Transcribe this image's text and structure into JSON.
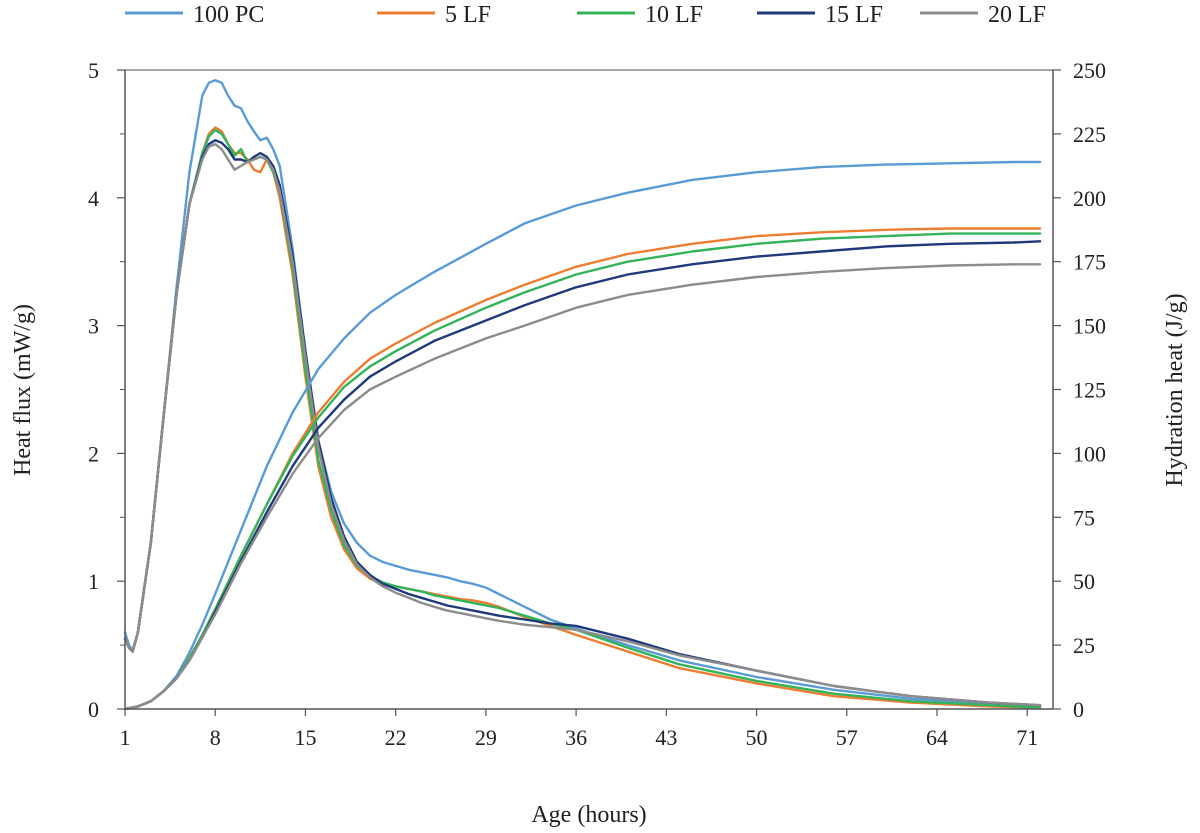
{
  "chart_data": {
    "type": "line",
    "xlabel": "Age (hours)",
    "ylabel_left": "Heat flux  (mW/g)",
    "ylabel_right": "Hydration heat (J/g)",
    "xlim": [
      1,
      73
    ],
    "ylim_left": [
      0,
      5
    ],
    "ylim_right": [
      0,
      250
    ],
    "x_ticks": [
      1,
      8,
      15,
      22,
      29,
      36,
      43,
      50,
      57,
      64,
      71
    ],
    "y_left_ticks": [
      0,
      1,
      2,
      3,
      4,
      5
    ],
    "y_right_ticks": [
      0,
      25,
      50,
      75,
      100,
      125,
      150,
      175,
      200,
      225,
      250
    ],
    "grid": false,
    "legend_position": "top",
    "legend": [
      {
        "name": "100 PC",
        "color": "#5b9bd5"
      },
      {
        "name": "5 LF",
        "color": "#ed7d31"
      },
      {
        "name": "10 LF",
        "color": "#33b35a"
      },
      {
        "name": "15 LF",
        "color": "#1f3a7a"
      },
      {
        "name": "20 LF",
        "color": "#8c8c8c"
      }
    ],
    "series": [
      {
        "name": "100 PC",
        "quantity": "heat_flux",
        "axis": "left",
        "color": "#5b9bd5",
        "x": [
          1,
          1.3,
          1.6,
          2,
          3,
          4,
          5,
          6,
          7,
          7.5,
          8,
          8.5,
          9,
          9.5,
          10,
          10.5,
          11,
          11.5,
          12,
          12.5,
          13,
          14,
          15,
          16,
          17,
          18,
          19,
          20,
          21,
          22,
          23,
          24,
          25,
          26,
          27,
          28,
          29,
          30,
          32,
          34,
          36,
          40,
          44,
          50,
          56,
          62,
          68,
          72
        ],
        "y": [
          0.6,
          0.5,
          0.46,
          0.6,
          1.3,
          2.3,
          3.3,
          4.2,
          4.8,
          4.9,
          4.92,
          4.9,
          4.8,
          4.72,
          4.7,
          4.6,
          4.52,
          4.45,
          4.47,
          4.38,
          4.25,
          3.6,
          2.8,
          2.1,
          1.7,
          1.45,
          1.3,
          1.2,
          1.15,
          1.12,
          1.09,
          1.07,
          1.05,
          1.03,
          1.0,
          0.98,
          0.95,
          0.9,
          0.8,
          0.7,
          0.63,
          0.5,
          0.38,
          0.25,
          0.15,
          0.08,
          0.04,
          0.02
        ]
      },
      {
        "name": "5 LF",
        "quantity": "heat_flux",
        "axis": "left",
        "color": "#ed7d31",
        "x": [
          1,
          1.3,
          1.6,
          2,
          3,
          4,
          5,
          6,
          7,
          7.5,
          8,
          8.5,
          9,
          9.5,
          10,
          10.5,
          11,
          11.5,
          12,
          12.5,
          13,
          14,
          15,
          16,
          17,
          18,
          19,
          20,
          21,
          22,
          23,
          24,
          25,
          26,
          27,
          28,
          29,
          30,
          32,
          34,
          36,
          40,
          44,
          50,
          56,
          62,
          68,
          72
        ],
        "y": [
          0.55,
          0.48,
          0.45,
          0.6,
          1.3,
          2.3,
          3.25,
          3.95,
          4.35,
          4.5,
          4.55,
          4.52,
          4.42,
          4.35,
          4.35,
          4.3,
          4.22,
          4.2,
          4.3,
          4.2,
          4.0,
          3.4,
          2.6,
          1.9,
          1.5,
          1.25,
          1.1,
          1.02,
          0.98,
          0.96,
          0.94,
          0.92,
          0.9,
          0.88,
          0.86,
          0.85,
          0.83,
          0.8,
          0.72,
          0.65,
          0.58,
          0.45,
          0.32,
          0.2,
          0.1,
          0.05,
          0.02,
          0.01
        ]
      },
      {
        "name": "10 LF",
        "quantity": "heat_flux",
        "axis": "left",
        "color": "#33b35a",
        "x": [
          1,
          1.3,
          1.6,
          2,
          3,
          4,
          5,
          6,
          7,
          7.5,
          8,
          8.5,
          9,
          9.5,
          10,
          10.5,
          11,
          11.5,
          12,
          12.5,
          13,
          14,
          15,
          16,
          17,
          18,
          19,
          20,
          21,
          22,
          23,
          24,
          25,
          26,
          27,
          28,
          29,
          30,
          32,
          34,
          36,
          40,
          44,
          50,
          56,
          62,
          68,
          72
        ],
        "y": [
          0.55,
          0.48,
          0.45,
          0.6,
          1.3,
          2.3,
          3.25,
          3.95,
          4.35,
          4.48,
          4.53,
          4.5,
          4.42,
          4.33,
          4.38,
          4.28,
          4.3,
          4.32,
          4.3,
          4.2,
          4.05,
          3.45,
          2.65,
          1.95,
          1.55,
          1.28,
          1.12,
          1.04,
          0.99,
          0.96,
          0.94,
          0.92,
          0.89,
          0.87,
          0.85,
          0.83,
          0.81,
          0.79,
          0.73,
          0.67,
          0.62,
          0.48,
          0.35,
          0.22,
          0.12,
          0.06,
          0.03,
          0.01
        ]
      },
      {
        "name": "15 LF",
        "quantity": "heat_flux",
        "axis": "left",
        "color": "#1f3a7a",
        "x": [
          1,
          1.3,
          1.6,
          2,
          3,
          4,
          5,
          6,
          7,
          7.5,
          8,
          8.5,
          9,
          9.5,
          10,
          10.5,
          11,
          11.5,
          12,
          12.5,
          13,
          14,
          15,
          16,
          17,
          18,
          19,
          20,
          21,
          22,
          23,
          24,
          25,
          26,
          27,
          28,
          29,
          30,
          32,
          34,
          36,
          40,
          44,
          50,
          56,
          62,
          68,
          72
        ],
        "y": [
          0.55,
          0.48,
          0.45,
          0.6,
          1.3,
          2.3,
          3.25,
          3.95,
          4.32,
          4.42,
          4.45,
          4.43,
          4.38,
          4.3,
          4.3,
          4.28,
          4.32,
          4.35,
          4.32,
          4.25,
          4.1,
          3.55,
          2.8,
          2.1,
          1.65,
          1.35,
          1.15,
          1.05,
          0.98,
          0.94,
          0.9,
          0.87,
          0.84,
          0.81,
          0.79,
          0.77,
          0.75,
          0.73,
          0.7,
          0.67,
          0.65,
          0.55,
          0.43,
          0.3,
          0.18,
          0.1,
          0.05,
          0.03
        ]
      },
      {
        "name": "20 LF",
        "quantity": "heat_flux",
        "axis": "left",
        "color": "#8c8c8c",
        "x": [
          1,
          1.3,
          1.6,
          2,
          3,
          4,
          5,
          6,
          7,
          7.5,
          8,
          8.5,
          9,
          9.5,
          10,
          10.5,
          11,
          11.5,
          12,
          12.5,
          13,
          14,
          15,
          16,
          17,
          18,
          19,
          20,
          21,
          22,
          23,
          24,
          25,
          26,
          27,
          28,
          29,
          30,
          32,
          34,
          36,
          40,
          44,
          50,
          56,
          62,
          68,
          72
        ],
        "y": [
          0.55,
          0.48,
          0.45,
          0.6,
          1.3,
          2.3,
          3.25,
          3.95,
          4.3,
          4.4,
          4.42,
          4.38,
          4.3,
          4.22,
          4.25,
          4.28,
          4.3,
          4.32,
          4.3,
          4.22,
          4.05,
          3.5,
          2.75,
          2.05,
          1.6,
          1.32,
          1.13,
          1.03,
          0.96,
          0.91,
          0.87,
          0.83,
          0.8,
          0.77,
          0.75,
          0.73,
          0.71,
          0.69,
          0.66,
          0.64,
          0.62,
          0.53,
          0.42,
          0.3,
          0.18,
          0.1,
          0.05,
          0.03
        ]
      },
      {
        "name": "100 PC",
        "quantity": "hydration_heat",
        "axis": "right",
        "color": "#5b9bd5",
        "x": [
          1,
          2,
          3,
          4,
          5,
          6,
          7,
          8,
          10,
          12,
          14,
          16,
          18,
          20,
          22,
          25,
          29,
          32,
          36,
          40,
          45,
          50,
          55,
          60,
          65,
          70,
          72
        ],
        "y": [
          0,
          1,
          3,
          7,
          13,
          22,
          33,
          45,
          70,
          95,
          116,
          133,
          145,
          155,
          162,
          171,
          182,
          190,
          197,
          202,
          207,
          210,
          212,
          213,
          213.5,
          214,
          214
        ]
      },
      {
        "name": "5 LF",
        "quantity": "hydration_heat",
        "axis": "right",
        "color": "#ed7d31",
        "x": [
          1,
          2,
          3,
          4,
          5,
          6,
          7,
          8,
          10,
          12,
          14,
          16,
          18,
          20,
          22,
          25,
          29,
          32,
          36,
          40,
          45,
          50,
          55,
          60,
          65,
          70,
          72
        ],
        "y": [
          0,
          1,
          3,
          7,
          12,
          20,
          29,
          39,
          60,
          80,
          100,
          116,
          128,
          137,
          143,
          151,
          160,
          166,
          173,
          178,
          182,
          185,
          186.5,
          187.5,
          188,
          188,
          188
        ]
      },
      {
        "name": "10 LF",
        "quantity": "hydration_heat",
        "axis": "right",
        "color": "#33b35a",
        "x": [
          1,
          2,
          3,
          4,
          5,
          6,
          7,
          8,
          10,
          12,
          14,
          16,
          18,
          20,
          22,
          25,
          29,
          32,
          36,
          40,
          45,
          50,
          55,
          60,
          65,
          70,
          72
        ],
        "y": [
          0,
          1,
          3,
          7,
          12,
          20,
          29,
          39,
          60,
          80,
          99,
          114,
          126,
          134,
          140,
          148,
          157,
          163,
          170,
          175,
          179,
          182,
          184,
          185,
          186,
          186,
          186
        ]
      },
      {
        "name": "15 LF",
        "quantity": "hydration_heat",
        "axis": "right",
        "color": "#1f3a7a",
        "x": [
          1,
          2,
          3,
          4,
          5,
          6,
          7,
          8,
          10,
          12,
          14,
          16,
          18,
          20,
          22,
          25,
          29,
          32,
          36,
          40,
          45,
          50,
          55,
          60,
          65,
          70,
          72
        ],
        "y": [
          0,
          1,
          3,
          7,
          12,
          19,
          28,
          38,
          58,
          77,
          95,
          110,
          121,
          130,
          136,
          144,
          152,
          158,
          165,
          170,
          174,
          177,
          179,
          181,
          182,
          182.5,
          183
        ]
      },
      {
        "name": "20 LF",
        "quantity": "hydration_heat",
        "axis": "right",
        "color": "#8c8c8c",
        "x": [
          1,
          2,
          3,
          4,
          5,
          6,
          7,
          8,
          10,
          12,
          14,
          16,
          18,
          20,
          22,
          25,
          29,
          32,
          36,
          40,
          45,
          50,
          55,
          60,
          65,
          70,
          72
        ],
        "y": [
          0,
          1,
          3,
          7,
          12,
          19,
          28,
          37,
          57,
          75,
          92,
          106,
          117,
          125,
          130,
          137,
          145,
          150,
          157,
          162,
          166,
          169,
          171,
          172.5,
          173.5,
          174,
          174
        ]
      }
    ]
  }
}
